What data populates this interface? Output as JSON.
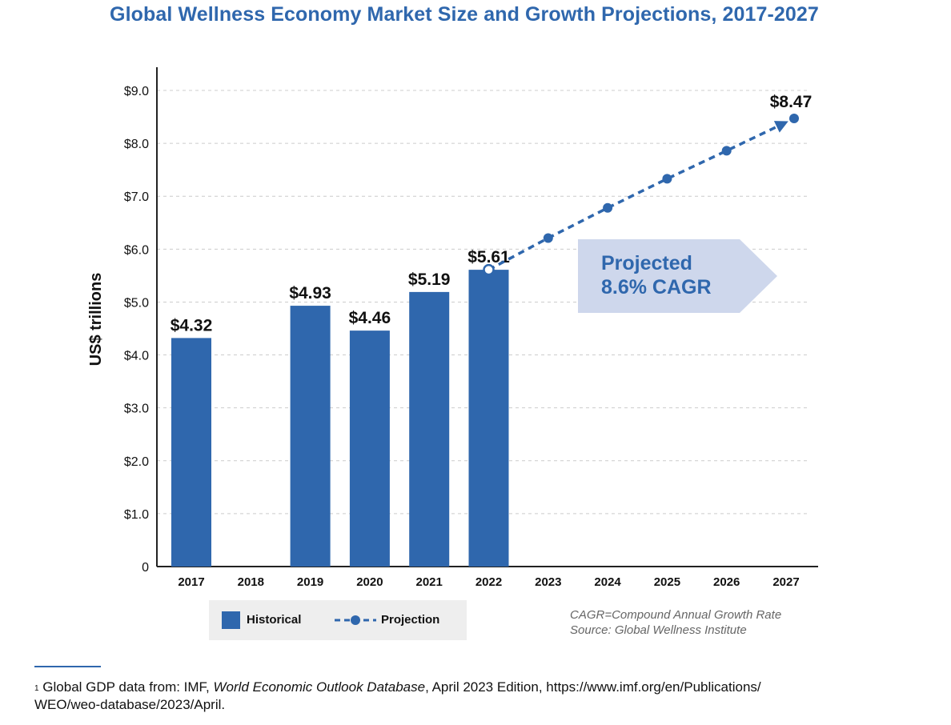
{
  "title": "Global Wellness Economy Market Size and Growth Projections, 2017-2027",
  "chart_data": {
    "type": "bar",
    "categories": [
      "2017",
      "2018",
      "2019",
      "2020",
      "2021",
      "2022",
      "2023",
      "2024",
      "2025",
      "2026",
      "2027"
    ],
    "series": [
      {
        "name": "Historical",
        "type": "bar",
        "x": [
          "2017",
          "2019",
          "2020",
          "2021",
          "2022"
        ],
        "values": [
          4.32,
          4.93,
          4.46,
          5.19,
          5.61
        ]
      },
      {
        "name": "Projection",
        "type": "line",
        "style": "dashed",
        "x": [
          "2022",
          "2023",
          "2024",
          "2025",
          "2026",
          "2027"
        ],
        "values": [
          5.61,
          6.21,
          6.78,
          7.33,
          7.86,
          8.47
        ]
      }
    ],
    "bar_labels": [
      "$4.32",
      "$4.93",
      "$4.46",
      "$5.19",
      "$5.61"
    ],
    "end_label": "$8.47",
    "y_ticks": [
      0,
      1,
      2,
      3,
      4,
      5,
      6,
      7,
      8,
      9
    ],
    "y_tick_labels": [
      "0",
      "$1.0",
      "$2.0",
      "$3.0",
      "$4.0",
      "$5.0",
      "$6.0",
      "$7.0",
      "$8.0",
      "$9.0"
    ],
    "ylabel": "US$ trillions",
    "xlabel": "",
    "ylim": [
      0,
      9
    ],
    "grid": true,
    "legend": "bottom-left"
  },
  "callout": {
    "line1": "Projected",
    "line2": "8.6% CAGR"
  },
  "legend": {
    "historical": "Historical",
    "projection": "Projection"
  },
  "notes": {
    "line1": "CAGR=Compound Annual Growth Rate",
    "line2": "Source: Global Wellness Institute"
  },
  "footnote": {
    "marker": "1",
    "prefix": "Global GDP data from: IMF, ",
    "italic": "World Economic Outlook Database",
    "suffix": ", April 2023 Edition, https://www.imf.org/en/Publications/",
    "line2": "WEO/weo-database/2023/April."
  },
  "colors": {
    "bar": "#2f67ad",
    "title": "#2f67ad",
    "callout_bg": "#ced7ec",
    "grid": "#cccccc"
  }
}
